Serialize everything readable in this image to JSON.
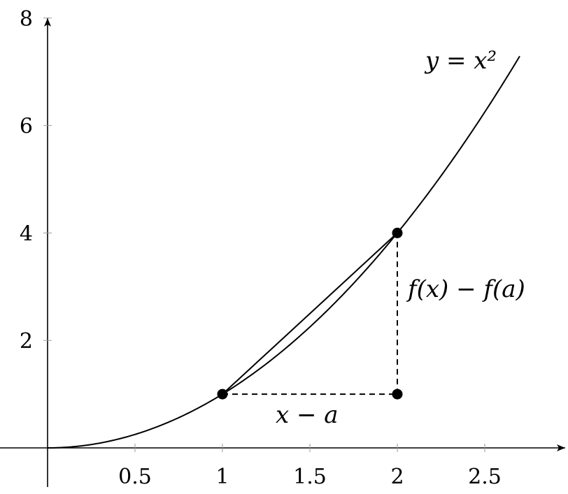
{
  "chart_data": {
    "type": "line",
    "title": "",
    "xlabel": "",
    "ylabel": "",
    "xlim": [
      0,
      2.7
    ],
    "ylim": [
      0,
      8
    ],
    "grid": false,
    "x_ticks": [
      {
        "value": 0.5,
        "label": "0.5"
      },
      {
        "value": 1,
        "label": "1"
      },
      {
        "value": 1.5,
        "label": "1.5"
      },
      {
        "value": 2,
        "label": "2"
      },
      {
        "value": 2.5,
        "label": "2.5"
      }
    ],
    "y_ticks": [
      {
        "value": 2,
        "label": "2"
      },
      {
        "value": 4,
        "label": "4"
      },
      {
        "value": 6,
        "label": "6"
      },
      {
        "value": 8,
        "label": "8"
      }
    ],
    "series": [
      {
        "function": "x^2",
        "x_range": [
          0,
          2.7
        ],
        "color": "#000000"
      }
    ],
    "points": [
      {
        "x": 1,
        "y": 1
      },
      {
        "x": 2,
        "y": 4
      },
      {
        "x": 2,
        "y": 1
      }
    ],
    "secant": {
      "from": [
        1,
        1
      ],
      "to": [
        2,
        4
      ]
    },
    "dashed_segments": [
      {
        "from": [
          1,
          1
        ],
        "to": [
          2,
          1
        ]
      },
      {
        "from": [
          2,
          1
        ],
        "to": [
          2,
          4
        ]
      }
    ],
    "annotations": {
      "curve": "y = x²",
      "vertical": "f(x) − f(a)",
      "horizontal": "x − a"
    }
  }
}
